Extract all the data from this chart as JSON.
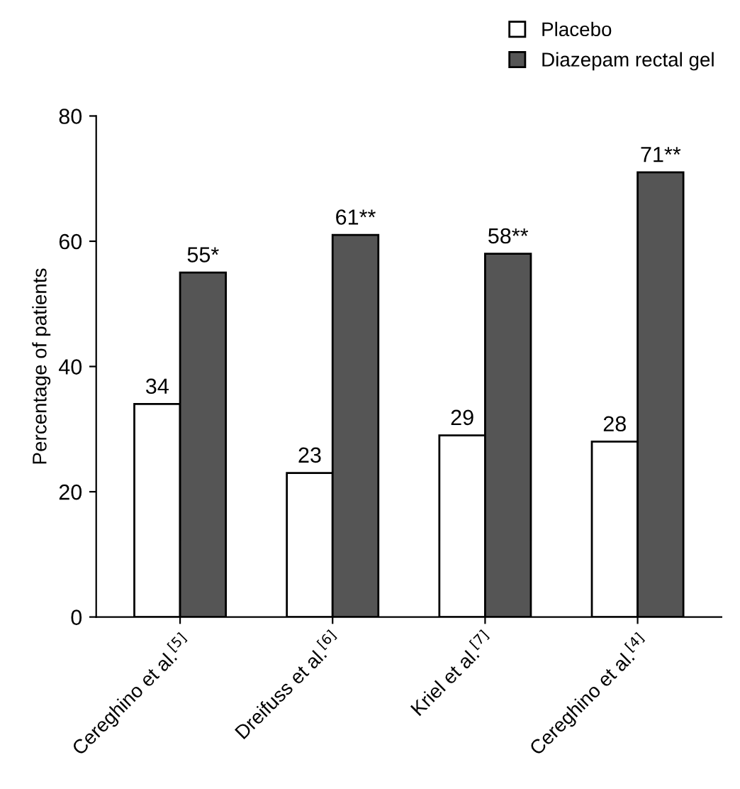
{
  "chart_data": {
    "type": "bar",
    "ylabel": "Percentage of patients",
    "categories": [
      "Cereghino et al.$^{[5]}$",
      "Dreifuss et al.$^{[6]}$",
      "Kriel et al.$^{[7]}$",
      "Cereghino et al.$^{[4]}$"
    ],
    "series": [
      {
        "name": "Placebo",
        "color": "#ffffff",
        "values": [
          34,
          23,
          29,
          28
        ],
        "value_labels": [
          "34",
          "23",
          "29",
          "28"
        ]
      },
      {
        "name": "Diazepam rectal gel",
        "color": "#555555",
        "values": [
          55,
          61,
          58,
          71
        ],
        "value_labels": [
          "55*",
          "61**",
          "58**",
          "71**"
        ]
      }
    ],
    "ylim": [
      0,
      80
    ],
    "yticks": [
      0,
      20,
      40,
      60,
      80
    ],
    "grid": false,
    "legend": "top right"
  }
}
